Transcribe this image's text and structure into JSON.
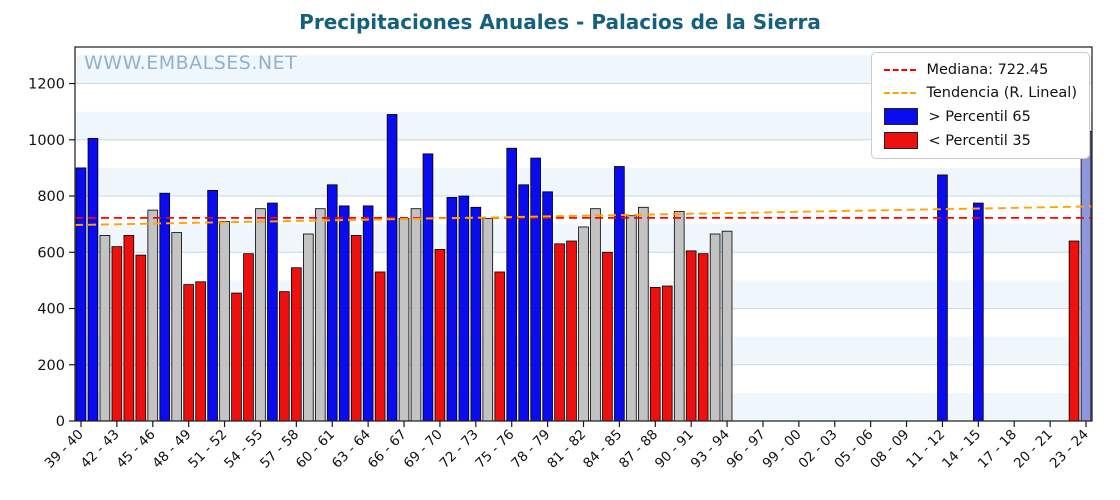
{
  "title": "Precipitaciones Anuales - Palacios de la Sierra",
  "watermark": "WWW.EMBALSES.NET",
  "legend": {
    "items": [
      {
        "type": "line",
        "color": "#ff0000",
        "label": "Mediana: 722.45"
      },
      {
        "type": "line",
        "color": "#ffa500",
        "label": "Tendencia (R. Lineal)"
      },
      {
        "type": "patch",
        "color": "#0b0bf0",
        "label": " > Percentil 65"
      },
      {
        "type": "patch",
        "color": "#ee0f0f",
        "label": " < Percentil 35"
      }
    ]
  },
  "colors": {
    "p65": "#0b0bf0",
    "p35": "#ee0f0f",
    "mid": "#c3c3c3",
    "current": "#8e97de",
    "median_line": "#ff0000",
    "trend_line": "#ffa500",
    "grid": "#c9d8e4",
    "band": "#dceef8",
    "spine": "#1a1a1a",
    "title": "#15607e"
  },
  "chart_data": {
    "type": "bar",
    "title": "Precipitaciones Anuales - Palacios de la Sierra",
    "xlabel": "",
    "ylabel": "",
    "ylim": [
      0,
      1330
    ],
    "yticks": [
      0,
      200,
      400,
      600,
      800,
      1000,
      1200
    ],
    "x_start_year": 1939,
    "x_end_year": 2023,
    "xtick_step_years": 3,
    "xtick_labels": [
      "39 - 40",
      "42 - 43",
      "45 - 46",
      "48 - 49",
      "51 - 52",
      "54 - 55",
      "57 - 58",
      "60 - 61",
      "63 - 64",
      "66 - 67",
      "69 - 70",
      "72 - 73",
      "75 - 76",
      "78 - 79",
      "81 - 82",
      "84 - 85",
      "87 - 88",
      "90 - 91",
      "93 - 94",
      "96 - 97",
      "99 - 00",
      "02 - 03",
      "05 - 06",
      "08 - 09",
      "11 - 12",
      "14 - 15",
      "17 - 18",
      "20 - 21",
      "23 - 24"
    ],
    "median": 722.45,
    "trend": {
      "start_value": 697,
      "end_value": 763
    },
    "legend_position": "upper right",
    "grid": true,
    "bars": [
      {
        "year": 1939,
        "value": 900,
        "cat": "p65"
      },
      {
        "year": 1940,
        "value": 1005,
        "cat": "p65"
      },
      {
        "year": 1941,
        "value": 660,
        "cat": "mid"
      },
      {
        "year": 1942,
        "value": 620,
        "cat": "p35"
      },
      {
        "year": 1943,
        "value": 660,
        "cat": "p35"
      },
      {
        "year": 1944,
        "value": 590,
        "cat": "p35"
      },
      {
        "year": 1945,
        "value": 750,
        "cat": "mid"
      },
      {
        "year": 1946,
        "value": 810,
        "cat": "p65"
      },
      {
        "year": 1947,
        "value": 670,
        "cat": "mid"
      },
      {
        "year": 1948,
        "value": 485,
        "cat": "p35"
      },
      {
        "year": 1949,
        "value": 495,
        "cat": "p35"
      },
      {
        "year": 1950,
        "value": 820,
        "cat": "p65"
      },
      {
        "year": 1951,
        "value": 710,
        "cat": "mid"
      },
      {
        "year": 1952,
        "value": 455,
        "cat": "p35"
      },
      {
        "year": 1953,
        "value": 595,
        "cat": "p35"
      },
      {
        "year": 1954,
        "value": 755,
        "cat": "mid"
      },
      {
        "year": 1955,
        "value": 775,
        "cat": "p65"
      },
      {
        "year": 1956,
        "value": 460,
        "cat": "p35"
      },
      {
        "year": 1957,
        "value": 545,
        "cat": "p35"
      },
      {
        "year": 1958,
        "value": 665,
        "cat": "mid"
      },
      {
        "year": 1959,
        "value": 755,
        "cat": "mid"
      },
      {
        "year": 1960,
        "value": 840,
        "cat": "p65"
      },
      {
        "year": 1961,
        "value": 765,
        "cat": "p65"
      },
      {
        "year": 1962,
        "value": 660,
        "cat": "p35"
      },
      {
        "year": 1963,
        "value": 765,
        "cat": "p65"
      },
      {
        "year": 1964,
        "value": 530,
        "cat": "p35"
      },
      {
        "year": 1965,
        "value": 1090,
        "cat": "p65"
      },
      {
        "year": 1966,
        "value": 720,
        "cat": "mid"
      },
      {
        "year": 1967,
        "value": 755,
        "cat": "mid"
      },
      {
        "year": 1968,
        "value": 950,
        "cat": "p65"
      },
      {
        "year": 1969,
        "value": 610,
        "cat": "p35"
      },
      {
        "year": 1970,
        "value": 795,
        "cat": "p65"
      },
      {
        "year": 1971,
        "value": 800,
        "cat": "p65"
      },
      {
        "year": 1972,
        "value": 760,
        "cat": "p65"
      },
      {
        "year": 1973,
        "value": 720,
        "cat": "mid"
      },
      {
        "year": 1974,
        "value": 530,
        "cat": "p35"
      },
      {
        "year": 1975,
        "value": 970,
        "cat": "p65"
      },
      {
        "year": 1976,
        "value": 840,
        "cat": "p65"
      },
      {
        "year": 1977,
        "value": 935,
        "cat": "p65"
      },
      {
        "year": 1978,
        "value": 815,
        "cat": "p65"
      },
      {
        "year": 1979,
        "value": 630,
        "cat": "p35"
      },
      {
        "year": 1980,
        "value": 640,
        "cat": "p35"
      },
      {
        "year": 1981,
        "value": 690,
        "cat": "mid"
      },
      {
        "year": 1982,
        "value": 755,
        "cat": "mid"
      },
      {
        "year": 1983,
        "value": 600,
        "cat": "p35"
      },
      {
        "year": 1984,
        "value": 905,
        "cat": "p65"
      },
      {
        "year": 1985,
        "value": 730,
        "cat": "mid"
      },
      {
        "year": 1986,
        "value": 760,
        "cat": "mid"
      },
      {
        "year": 1987,
        "value": 475,
        "cat": "p35"
      },
      {
        "year": 1988,
        "value": 480,
        "cat": "p35"
      },
      {
        "year": 1989,
        "value": 745,
        "cat": "mid"
      },
      {
        "year": 1990,
        "value": 605,
        "cat": "p35"
      },
      {
        "year": 1991,
        "value": 595,
        "cat": "p35"
      },
      {
        "year": 1992,
        "value": 665,
        "cat": "mid"
      },
      {
        "year": 1993,
        "value": 675,
        "cat": "mid"
      },
      {
        "year": 2011,
        "value": 875,
        "cat": "p65"
      },
      {
        "year": 2014,
        "value": 775,
        "cat": "p65"
      },
      {
        "year": 2022,
        "value": 640,
        "cat": "p35"
      },
      {
        "year": 2023,
        "value": 1030,
        "cat": "current"
      }
    ]
  }
}
